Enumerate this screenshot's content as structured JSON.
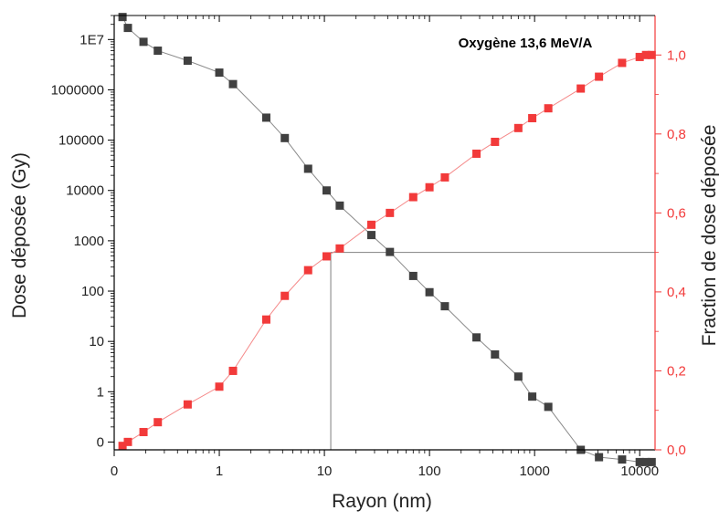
{
  "chart_data": {
    "type": "scatter",
    "title": "Oxygène 13,6 MeV/A",
    "xlabel": "Rayon (nm)",
    "ylabel_left": "Dose déposée (Gy)",
    "ylabel_right": "Fraction de dose déposée",
    "x_scale": "log",
    "y_left_scale": "log (0 shown as baseline tick)",
    "x_ticks": [
      {
        "value": 0.1,
        "label": "0"
      },
      {
        "value": 1,
        "label": "1"
      },
      {
        "value": 10,
        "label": "10"
      },
      {
        "value": 100,
        "label": "100"
      },
      {
        "value": 1000,
        "label": "1000"
      },
      {
        "value": 10000,
        "label": "10000"
      }
    ],
    "y_left_ticks": [
      {
        "value": 0.1,
        "label": "0"
      },
      {
        "value": 1,
        "label": "1"
      },
      {
        "value": 10,
        "label": "10"
      },
      {
        "value": 100,
        "label": "100"
      },
      {
        "value": 1000,
        "label": "1000"
      },
      {
        "value": 10000,
        "label": "10000"
      },
      {
        "value": 100000,
        "label": "100000"
      },
      {
        "value": 1000000,
        "label": "1000000"
      },
      {
        "value": 10000000,
        "label": "1E7"
      }
    ],
    "y_right_ticks": [
      {
        "value": 0.0,
        "label": "0,0"
      },
      {
        "value": 0.2,
        "label": "0,2"
      },
      {
        "value": 0.4,
        "label": "0,4"
      },
      {
        "value": 0.6,
        "label": "0,6"
      },
      {
        "value": 0.8,
        "label": "0,8"
      },
      {
        "value": 1.0,
        "label": "1,0"
      }
    ],
    "xlim": [
      0.1,
      14000
    ],
    "ylim_left": [
      0.07,
      30000000
    ],
    "ylim_right": [
      0.0,
      1.1
    ],
    "reference_lines": {
      "x": 11.5,
      "y_fraction": 0.5
    },
    "colors": {
      "dose": "#404040",
      "fraction": "#f23a3a",
      "guide": "#808080"
    },
    "series": [
      {
        "axis": "left",
        "x": [
          0.12,
          0.135,
          0.19,
          0.26,
          0.5,
          1.0,
          1.35,
          2.8,
          4.2,
          7.0,
          10.5,
          14,
          28,
          42,
          70,
          100,
          140,
          280,
          420,
          700,
          950,
          1350,
          2750,
          4100,
          6800,
          10000,
          11500,
          13000
        ],
        "values": [
          28000000,
          17000000,
          9000000,
          6000000,
          3800000,
          2200000,
          1300000,
          280000,
          110000,
          27000,
          10000,
          5000,
          1300,
          600,
          200,
          95,
          50,
          12,
          5.5,
          2,
          0.8,
          0.5,
          0.07,
          0.05,
          0.045,
          0.04,
          0.04,
          0.04
        ]
      },
      {
        "axis": "right",
        "x": [
          0.12,
          0.135,
          0.19,
          0.26,
          0.5,
          1.0,
          1.35,
          2.8,
          4.2,
          7.0,
          10.5,
          14,
          28,
          42,
          70,
          100,
          140,
          280,
          420,
          700,
          950,
          1350,
          2750,
          4100,
          6800,
          10000,
          11500,
          13000
        ],
        "values": [
          0.01,
          0.02,
          0.045,
          0.07,
          0.115,
          0.16,
          0.2,
          0.33,
          0.39,
          0.455,
          0.49,
          0.51,
          0.57,
          0.6,
          0.64,
          0.665,
          0.69,
          0.75,
          0.78,
          0.815,
          0.84,
          0.865,
          0.915,
          0.945,
          0.98,
          0.995,
          1.0,
          1.0
        ]
      }
    ]
  }
}
